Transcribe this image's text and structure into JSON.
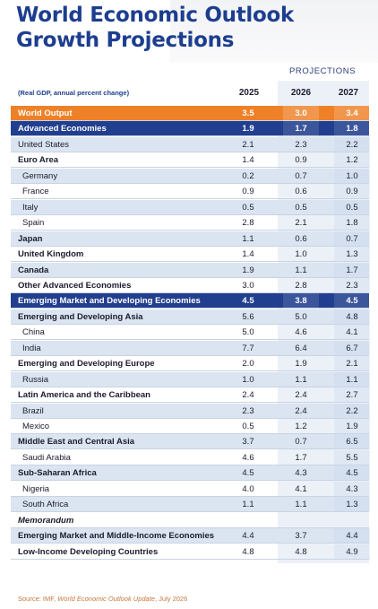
{
  "header": {
    "title_line1": "World Economic Outlook",
    "title_line2": "Growth Projections",
    "projections": "PROJECTIONS",
    "note": "(Real GDP, annual percent change)",
    "columns": [
      "2025",
      "2026",
      "2027"
    ]
  },
  "table": {
    "rows": [
      {
        "label": "World Output",
        "values": [
          "3.5",
          "3.0",
          "3.4"
        ]
      },
      {
        "label": "Advanced Economies",
        "values": [
          "1.9",
          "1.7",
          "1.8"
        ]
      },
      {
        "label": "United States",
        "values": [
          "2.1",
          "2.3",
          "2.2"
        ]
      },
      {
        "label": "Euro Area",
        "values": [
          "1.4",
          "0.9",
          "1.2"
        ]
      },
      {
        "label": "Germany",
        "values": [
          "0.2",
          "0.7",
          "1.0"
        ]
      },
      {
        "label": "France",
        "values": [
          "0.9",
          "0.6",
          "0.9"
        ]
      },
      {
        "label": "Italy",
        "values": [
          "0.5",
          "0.5",
          "0.5"
        ]
      },
      {
        "label": "Spain",
        "values": [
          "2.8",
          "2.1",
          "1.8"
        ]
      },
      {
        "label": "Japan",
        "values": [
          "1.1",
          "0.6",
          "0.7"
        ]
      },
      {
        "label": "United Kingdom",
        "values": [
          "1.4",
          "1.0",
          "1.3"
        ]
      },
      {
        "label": "Canada",
        "values": [
          "1.9",
          "1.1",
          "1.7"
        ]
      },
      {
        "label": "Other Advanced Economies",
        "values": [
          "3.0",
          "2.8",
          "2.3"
        ]
      },
      {
        "label": "Emerging Market and Developing Economies",
        "values": [
          "4.5",
          "3.8",
          "4.5"
        ]
      },
      {
        "label": "Emerging and Developing Asia",
        "values": [
          "5.6",
          "5.0",
          "4.8"
        ]
      },
      {
        "label": "China",
        "values": [
          "5.0",
          "4.6",
          "4.1"
        ]
      },
      {
        "label": "India",
        "values": [
          "7.7",
          "6.4",
          "6.7"
        ]
      },
      {
        "label": "Emerging and Developing Europe",
        "values": [
          "2.0",
          "1.9",
          "2.1"
        ]
      },
      {
        "label": "Russia",
        "values": [
          "1.0",
          "1.1",
          "1.1"
        ]
      },
      {
        "label": "Latin America and the Caribbean",
        "values": [
          "2.4",
          "2.4",
          "2.7"
        ]
      },
      {
        "label": "Brazil",
        "values": [
          "2.3",
          "2.4",
          "2.2"
        ]
      },
      {
        "label": "Mexico",
        "values": [
          "0.5",
          "1.2",
          "1.9"
        ]
      },
      {
        "label": "Middle East and Central Asia",
        "values": [
          "3.7",
          "0.7",
          "6.5"
        ]
      },
      {
        "label": "Saudi Arabia",
        "values": [
          "4.6",
          "1.7",
          "5.5"
        ]
      },
      {
        "label": "Sub-Saharan Africa",
        "values": [
          "4.5",
          "4.3",
          "4.5"
        ]
      },
      {
        "label": "Nigeria",
        "values": [
          "4.0",
          "4.1",
          "4.3"
        ]
      },
      {
        "label": "South Africa",
        "values": [
          "1.1",
          "1.1",
          "1.3"
        ]
      },
      {
        "label": "Memorandum",
        "values": []
      },
      {
        "label": "Emerging Market and Middle-Income Economies",
        "values": [
          "4.4",
          "3.7",
          "4.4"
        ]
      },
      {
        "label": "Low-Income Developing Countries",
        "values": [
          "4.8",
          "4.8",
          "4.9"
        ]
      }
    ]
  },
  "source": {
    "prefix": "Source: IMF, ",
    "title": "World Economic Outlook Update",
    "suffix": ", July 2026"
  }
}
